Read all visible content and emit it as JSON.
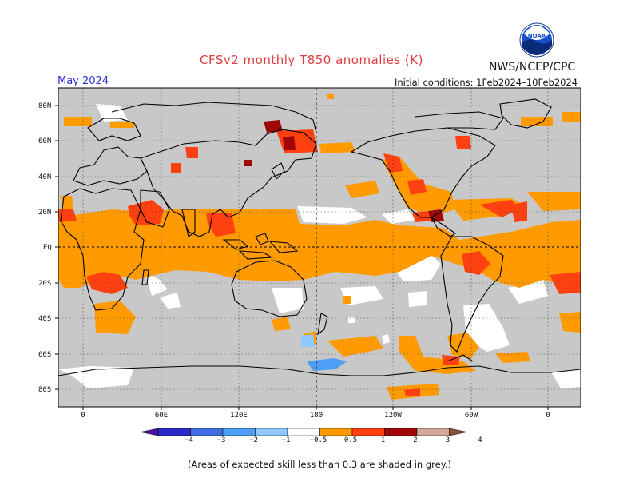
{
  "header": {
    "title": "CFSv2 monthly T850 anomalies (K)",
    "organization": "NWS/NCEP/CPC",
    "logo_text": "NOAA",
    "target_month": "May 2024",
    "initial_conditions": "Initial conditions: 1Feb2024–10Feb2024"
  },
  "map": {
    "lat_labels": [
      "80N",
      "60N",
      "40N",
      "20N",
      "EQ",
      "20S",
      "40S",
      "60S",
      "80S"
    ],
    "lon_labels": [
      "0",
      "60E",
      "120E",
      "180",
      "120W",
      "60W",
      "0"
    ],
    "colors": {
      "ocean_low_skill": "#c8c8c8",
      "land_low_skill": "#c8c8c8",
      "coast": "#000000"
    }
  },
  "colorbar": {
    "labels": [
      "−4",
      "−3",
      "−2",
      "−1",
      "−0.5",
      "0.5",
      "1",
      "2",
      "3",
      "4"
    ],
    "bins": [
      {
        "range": "< -4",
        "color": "#4a10a8"
      },
      {
        "range": "-4 to -3",
        "color": "#2a2ac8"
      },
      {
        "range": "-3 to -2",
        "color": "#3c6ee0"
      },
      {
        "range": "-2 to -1",
        "color": "#4f9ef5"
      },
      {
        "range": "-1 to -0.5",
        "color": "#8fc8ff"
      },
      {
        "range": "-0.5 to 0.5",
        "color": "#ffffff"
      },
      {
        "range": "0.5 to 1",
        "color": "#ff9a00"
      },
      {
        "range": "1 to 2",
        "color": "#ff4010"
      },
      {
        "range": "2 to 3",
        "color": "#a00808"
      },
      {
        "range": "3 to 4",
        "color": "#d6a89a"
      },
      {
        "range": "> 4",
        "color": "#8a5040"
      }
    ]
  },
  "footnote": "(Areas of expected skill less than 0.3 are shaded in grey.)"
}
